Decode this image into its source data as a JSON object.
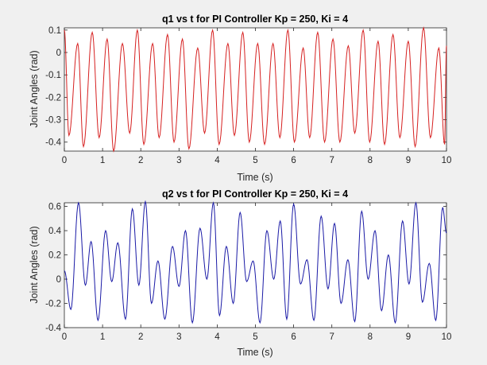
{
  "window_background": "#f0f0f0",
  "chart_data": [
    {
      "type": "line",
      "title": "q1 vs t for PI Controller Kp = 250, Ki = 4",
      "xlabel": "Time (s)",
      "ylabel": "Joint Angles (rad)",
      "xlim": [
        0,
        10
      ],
      "ylim": [
        -0.44,
        0.11
      ],
      "xticks": [
        "0",
        "1",
        "2",
        "3",
        "4",
        "5",
        "6",
        "7",
        "8",
        "9",
        "10"
      ],
      "yticks": [
        "0.1",
        "0",
        "-0.1",
        "-0.2",
        "-0.3",
        "-0.4"
      ],
      "grid": false,
      "series": [
        {
          "color": "#d62020",
          "peaks": [
            [
              0.0,
              0.1
            ],
            [
              0.12,
              -0.37
            ],
            [
              0.35,
              0.04
            ],
            [
              0.5,
              -0.42
            ],
            [
              0.73,
              0.09
            ],
            [
              0.91,
              -0.38
            ],
            [
              1.12,
              0.06
            ],
            [
              1.29,
              -0.44
            ],
            [
              1.52,
              0.04
            ],
            [
              1.71,
              -0.36
            ],
            [
              1.91,
              0.1
            ],
            [
              2.08,
              -0.41
            ],
            [
              2.31,
              0.04
            ],
            [
              2.48,
              -0.38
            ],
            [
              2.7,
              0.08
            ],
            [
              2.87,
              -0.4
            ],
            [
              3.09,
              0.06
            ],
            [
              3.26,
              -0.43
            ],
            [
              3.49,
              0.02
            ],
            [
              3.67,
              -0.36
            ],
            [
              3.88,
              0.1
            ],
            [
              4.05,
              -0.41
            ],
            [
              4.28,
              0.04
            ],
            [
              4.45,
              -0.37
            ],
            [
              4.67,
              0.09
            ],
            [
              4.84,
              -0.4
            ],
            [
              5.06,
              0.04
            ],
            [
              5.24,
              -0.41
            ],
            [
              5.46,
              0.04
            ],
            [
              5.64,
              -0.38
            ],
            [
              5.85,
              0.1
            ],
            [
              6.02,
              -0.4
            ],
            [
              6.25,
              0.02
            ],
            [
              6.42,
              -0.38
            ],
            [
              6.63,
              0.09
            ],
            [
              6.81,
              -0.4
            ],
            [
              7.03,
              0.06
            ],
            [
              7.21,
              -0.4
            ],
            [
              7.43,
              0.03
            ],
            [
              7.6,
              -0.36
            ],
            [
              7.82,
              0.1
            ],
            [
              7.99,
              -0.4
            ],
            [
              8.21,
              0.05
            ],
            [
              8.38,
              -0.41
            ],
            [
              8.6,
              0.08
            ],
            [
              8.78,
              -0.38
            ],
            [
              9.0,
              0.05
            ],
            [
              9.18,
              -0.42
            ],
            [
              9.4,
              0.11
            ],
            [
              9.58,
              -0.38
            ],
            [
              9.8,
              0.02
            ],
            [
              9.95,
              -0.41
            ],
            [
              10.0,
              0.03
            ]
          ]
        }
      ]
    },
    {
      "type": "line",
      "title": "q2 vs t for PI Controller Kp = 250, Ki = 4",
      "xlabel": "Time (s)",
      "ylabel": "Joint Angles (rad)",
      "xlim": [
        0,
        10
      ],
      "ylim": [
        -0.4,
        0.63
      ],
      "xticks": [
        "0",
        "1",
        "2",
        "3",
        "4",
        "5",
        "6",
        "7",
        "8",
        "9",
        "10"
      ],
      "yticks": [
        "0.6",
        "0.4",
        "0.2",
        "0",
        "-0.2",
        "-0.4"
      ],
      "grid": false,
      "series": [
        {
          "color": "#1a1aa6",
          "peaks": [
            [
              0.0,
              0.07
            ],
            [
              0.17,
              -0.25
            ],
            [
              0.37,
              0.63
            ],
            [
              0.55,
              -0.05
            ],
            [
              0.7,
              0.31
            ],
            [
              0.88,
              -0.34
            ],
            [
              1.08,
              0.4
            ],
            [
              1.24,
              -0.02
            ],
            [
              1.4,
              0.3
            ],
            [
              1.6,
              -0.33
            ],
            [
              1.78,
              0.58
            ],
            [
              1.95,
              -0.05
            ],
            [
              2.12,
              0.64
            ],
            [
              2.28,
              -0.2
            ],
            [
              2.45,
              0.15
            ],
            [
              2.63,
              -0.33
            ],
            [
              2.83,
              0.27
            ],
            [
              3.0,
              -0.06
            ],
            [
              3.17,
              0.4
            ],
            [
              3.35,
              -0.36
            ],
            [
              3.55,
              0.42
            ],
            [
              3.73,
              0.0
            ],
            [
              3.9,
              0.63
            ],
            [
              4.06,
              -0.3
            ],
            [
              4.24,
              0.27
            ],
            [
              4.42,
              -0.2
            ],
            [
              4.6,
              0.55
            ],
            [
              4.77,
              -0.02
            ],
            [
              4.94,
              0.15
            ],
            [
              5.12,
              -0.36
            ],
            [
              5.3,
              0.4
            ],
            [
              5.48,
              0.0
            ],
            [
              5.65,
              0.48
            ],
            [
              5.82,
              -0.33
            ],
            [
              6.0,
              0.62
            ],
            [
              6.18,
              -0.04
            ],
            [
              6.35,
              0.16
            ],
            [
              6.53,
              -0.34
            ],
            [
              6.72,
              0.52
            ],
            [
              6.9,
              -0.08
            ],
            [
              7.07,
              0.46
            ],
            [
              7.24,
              -0.2
            ],
            [
              7.42,
              0.16
            ],
            [
              7.6,
              -0.35
            ],
            [
              7.78,
              0.56
            ],
            [
              7.95,
              0.0
            ],
            [
              8.13,
              0.4
            ],
            [
              8.3,
              -0.26
            ],
            [
              8.48,
              0.2
            ],
            [
              8.66,
              -0.36
            ],
            [
              8.85,
              0.48
            ],
            [
              9.02,
              -0.04
            ],
            [
              9.2,
              0.63
            ],
            [
              9.37,
              -0.19
            ],
            [
              9.55,
              0.13
            ],
            [
              9.72,
              -0.34
            ],
            [
              9.9,
              0.59
            ],
            [
              10.0,
              0.38
            ]
          ]
        }
      ]
    }
  ]
}
